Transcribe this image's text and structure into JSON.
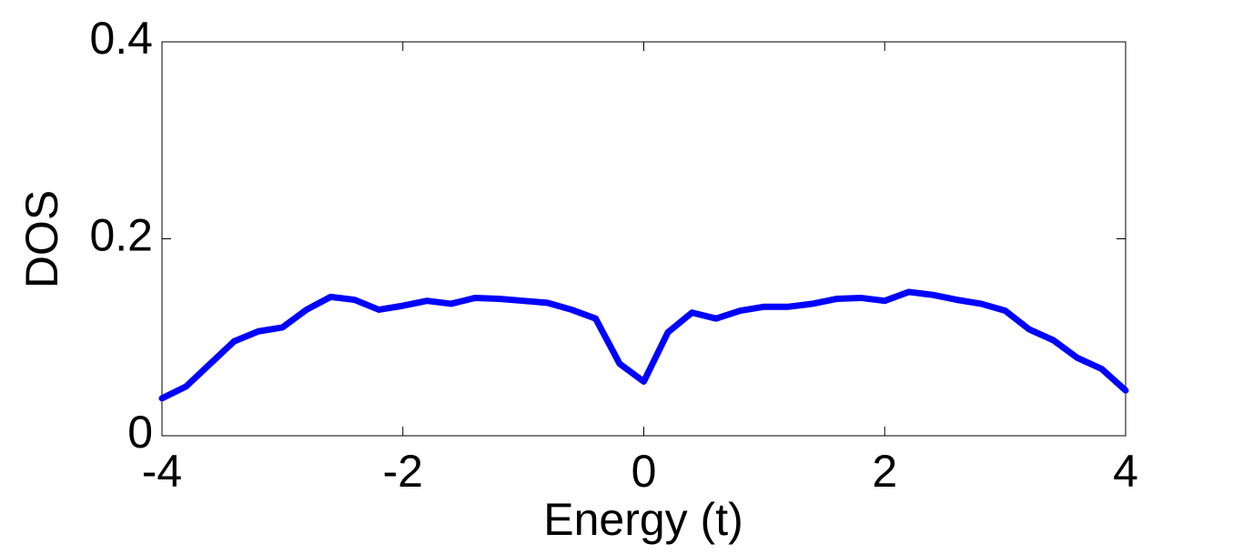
{
  "chart_data": {
    "type": "line",
    "xlabel": "Energy (t)",
    "ylabel": "DOS",
    "x": [
      -4,
      -3.8,
      -3.6,
      -3.4,
      -3.2,
      -3,
      -2.8,
      -2.6,
      -2.4,
      -2.2,
      -2,
      -1.8,
      -1.6,
      -1.4,
      -1.2,
      -1,
      -0.8,
      -0.6,
      -0.4,
      -0.2,
      0,
      0.2,
      0.4,
      0.6,
      0.8,
      1,
      1.2,
      1.4,
      1.6,
      1.8,
      2,
      2.2,
      2.4,
      2.6,
      2.8,
      3,
      3.2,
      3.4,
      3.6,
      3.8,
      4
    ],
    "series": [
      {
        "color": "#0000ff",
        "values": [
          0.038,
          0.05,
          0.073,
          0.096,
          0.106,
          0.11,
          0.128,
          0.141,
          0.138,
          0.128,
          0.132,
          0.137,
          0.134,
          0.14,
          0.139,
          0.137,
          0.135,
          0.128,
          0.119,
          0.073,
          0.055,
          0.105,
          0.125,
          0.119,
          0.127,
          0.131,
          0.131,
          0.134,
          0.139,
          0.14,
          0.137,
          0.146,
          0.143,
          0.138,
          0.134,
          0.127,
          0.108,
          0.097,
          0.079,
          0.068,
          0.046
        ]
      }
    ],
    "xlim": [
      -4,
      4
    ],
    "xticks": [
      -4,
      -2,
      0,
      2,
      4
    ],
    "ylim": [
      0,
      0.4
    ],
    "yticks": [
      0,
      0.2,
      0.4
    ]
  }
}
